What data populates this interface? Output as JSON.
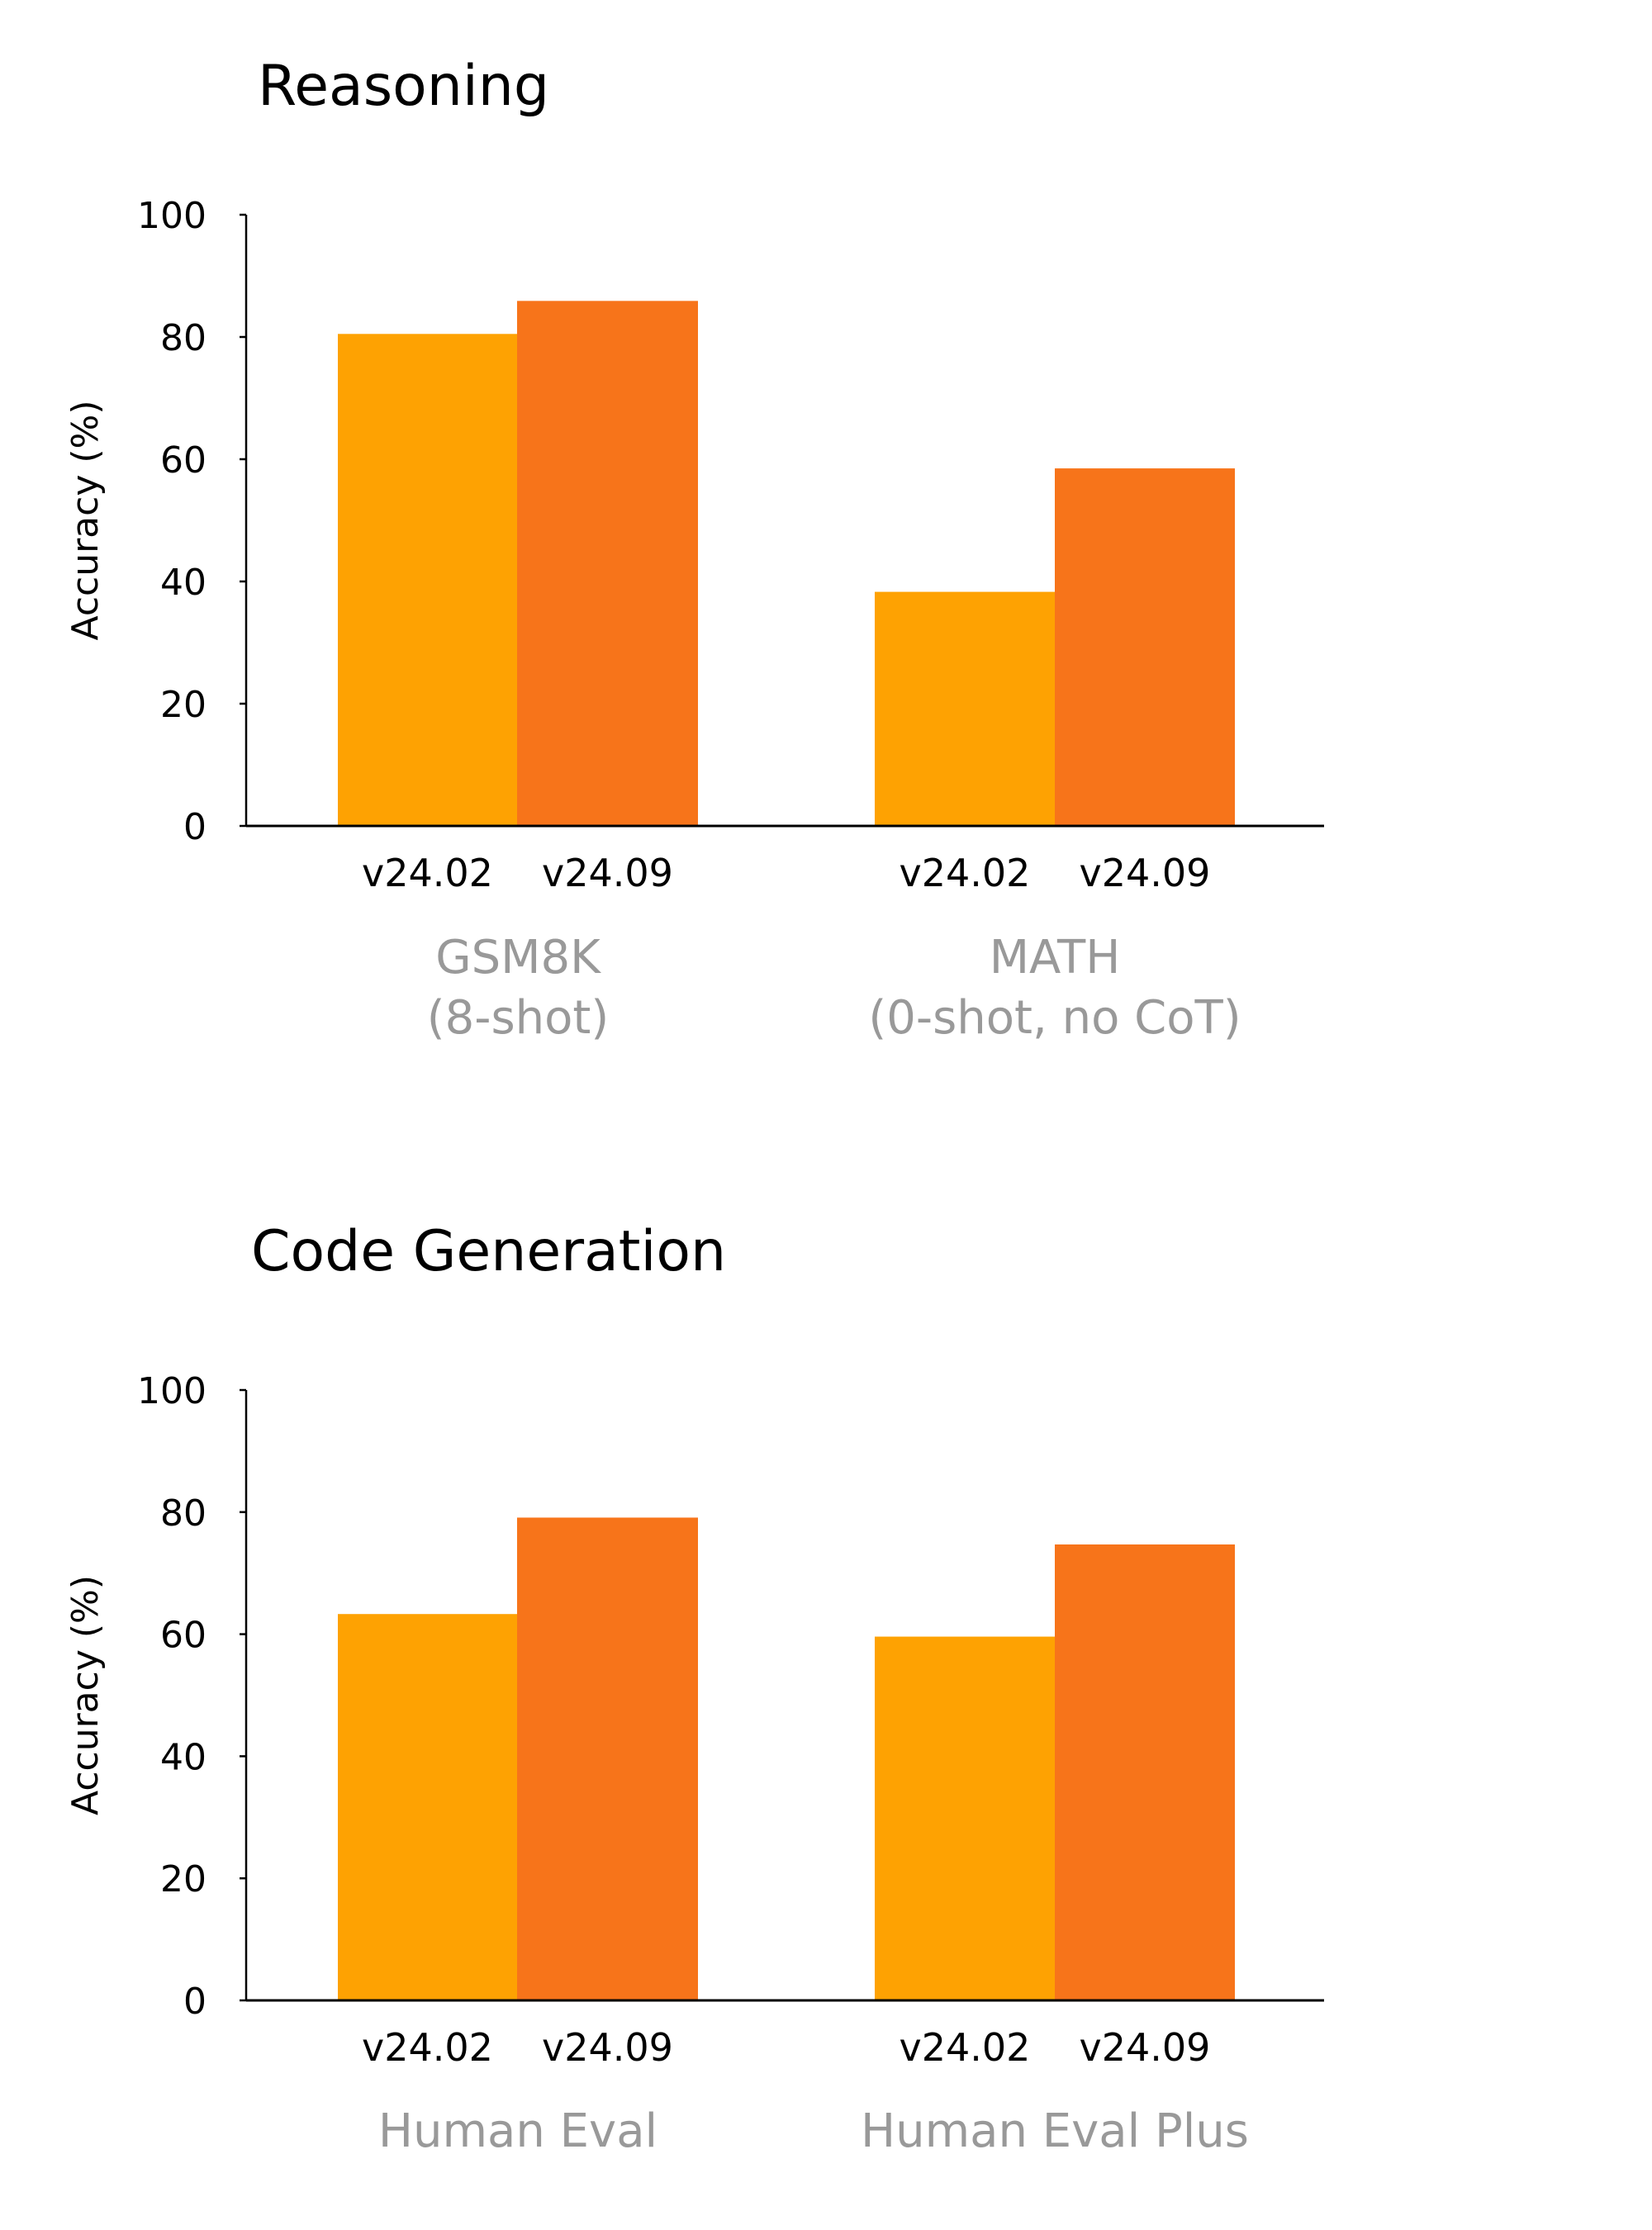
{
  "colors": {
    "v24.02": "#FEA202",
    "v24.09": "#F7741A",
    "category_label": "#999999",
    "axis": "#000000"
  },
  "chart_data": [
    {
      "type": "bar",
      "title": "Reasoning",
      "ylabel": "Accuracy (%)",
      "xlabel": "",
      "ylim": [
        0,
        100
      ],
      "yticks": [
        "0",
        "20",
        "40",
        "60",
        "80",
        "100"
      ],
      "categories": [
        {
          "lines": [
            "GSM8K",
            "(8-shot)"
          ],
          "bar_labels": [
            "v24.02",
            "v24.09"
          ],
          "values": [
            80.5,
            85.9
          ]
        },
        {
          "lines": [
            "MATH",
            "(0-shot, no CoT)"
          ],
          "bar_labels": [
            "v24.02",
            "v24.09"
          ],
          "values": [
            38.3,
            58.5
          ]
        }
      ],
      "grid": false
    },
    {
      "type": "bar",
      "title": "Code Generation",
      "ylabel": "Accuracy (%)",
      "xlabel": "",
      "ylim": [
        0,
        100
      ],
      "yticks": [
        "0",
        "20",
        "40",
        "60",
        "80",
        "100"
      ],
      "categories": [
        {
          "lines": [
            "Human Eval"
          ],
          "bar_labels": [
            "v24.02",
            "v24.09"
          ],
          "values": [
            63.3,
            79.1
          ]
        },
        {
          "lines": [
            "Human Eval Plus"
          ],
          "bar_labels": [
            "v24.02",
            "v24.09"
          ],
          "values": [
            59.6,
            74.7
          ]
        }
      ],
      "grid": false
    }
  ]
}
